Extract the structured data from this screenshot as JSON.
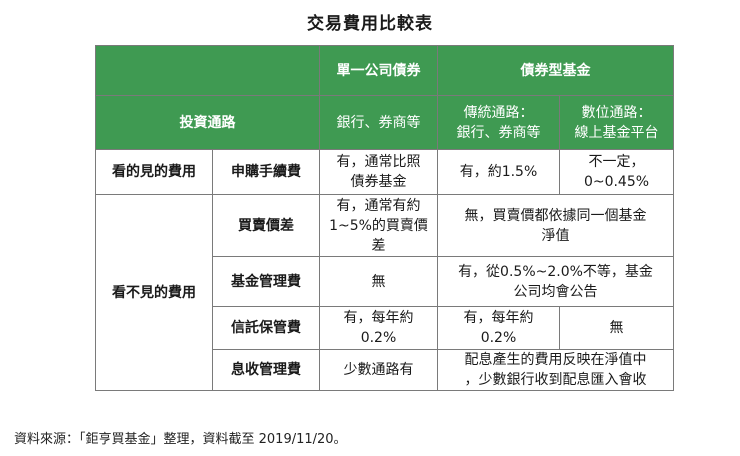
{
  "title": "交易費用比較表",
  "header": {
    "product_single_bond": "單一公司債券",
    "product_bond_fund": "債券型基金",
    "channel_label": "投資通路",
    "channel_single_bond": "銀行、券商等",
    "channel_traditional": "傳統通路：\n銀行、券商等",
    "channel_digital": "數位通路：\n線上基金平台"
  },
  "visible_fees": {
    "category": "看的見的費用",
    "subscription_fee": {
      "label": "申購手續費",
      "single_bond": "有，通常比照\n債券基金",
      "traditional": "有，約1.5%",
      "digital": "不一定，\n0~0.45%"
    }
  },
  "hidden_fees": {
    "category": "看不見的費用",
    "spread": {
      "label": "買賣價差",
      "single_bond": "有，通常有約\n1~5%的買賣價\n差",
      "fund": "無，買賣價都依據同一個基金\n淨值"
    },
    "management_fee": {
      "label": "基金管理費",
      "single_bond": "無",
      "fund": "有，從0.5%~2.0%不等，基金\n公司均會公告"
    },
    "custody_fee": {
      "label": "信託保管費",
      "single_bond": "有，每年約\n0.2%",
      "traditional": "有，每年約\n0.2%",
      "digital": "無"
    },
    "interest_collection_fee": {
      "label": "息收管理費",
      "single_bond": "少數通路有",
      "fund": "配息產生的費用反映在淨值中\n，少數銀行收到配息匯入會收"
    }
  },
  "source": "資料來源：「鉅亨買基金」整理，資料截至 2019/11/20。"
}
